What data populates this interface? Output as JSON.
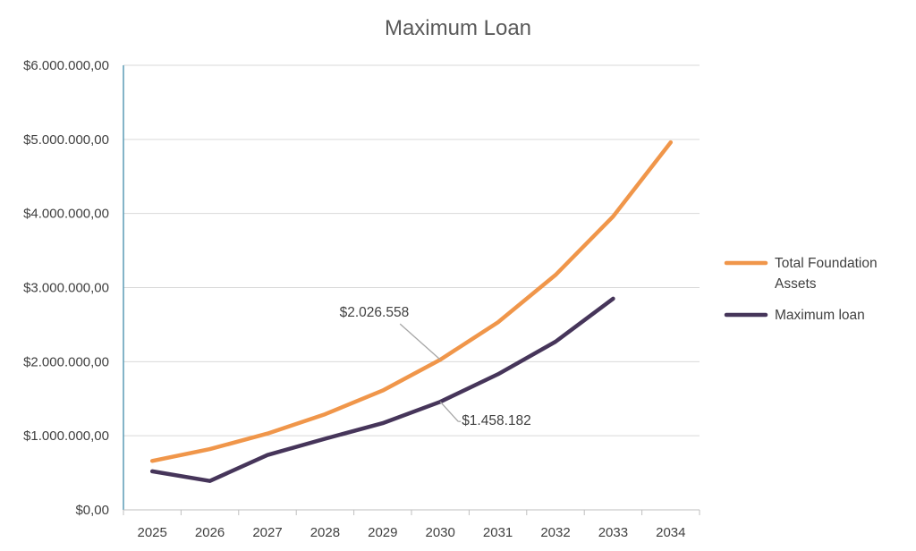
{
  "chart_data": {
    "type": "line",
    "title": "Maximum Loan",
    "categories": [
      "2025",
      "2026",
      "2027",
      "2028",
      "2029",
      "2030",
      "2031",
      "2032",
      "2033",
      "2034"
    ],
    "ylim": [
      0,
      6000000
    ],
    "y_ticks": [
      0,
      1000000,
      2000000,
      3000000,
      4000000,
      5000000,
      6000000
    ],
    "y_tick_labels": [
      "$0,00",
      "$1.000.000,00",
      "$2.000.000,00",
      "$3.000.000,00",
      "$4.000.000,00",
      "$5.000.000,00",
      "$6.000.000,00"
    ],
    "grid": true,
    "legend_position": "right",
    "series": [
      {
        "name": "Total Foundation Assets",
        "name_lines": [
          "Total Foundation",
          "Assets"
        ],
        "color": "#F0964A",
        "values": [
          660000,
          820000,
          1030000,
          1290000,
          1610000,
          2026558,
          2530000,
          3170000,
          3960000,
          4960000
        ]
      },
      {
        "name": "Maximum loan",
        "name_lines": [
          "Maximum loan"
        ],
        "color": "#46355A",
        "values": [
          520000,
          390000,
          740000,
          960000,
          1170000,
          1458182,
          1830000,
          2270000,
          2850000,
          null
        ]
      }
    ],
    "annotations": [
      {
        "series": 0,
        "category_index": 5,
        "label": "$2.026.558"
      },
      {
        "series": 1,
        "category_index": 5,
        "label": "$1.458.182"
      }
    ]
  }
}
